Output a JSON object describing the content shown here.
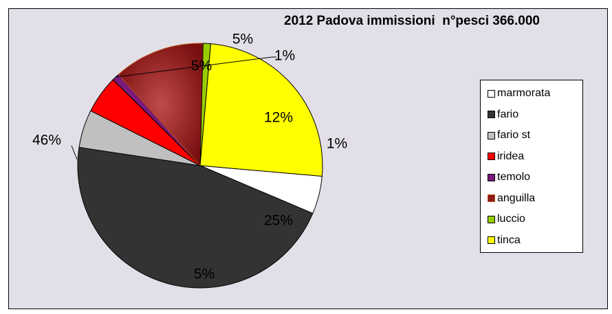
{
  "chart_data": {
    "type": "pie",
    "title": "2012 Padova immissioni  n°pesci 366.000",
    "slices": [
      {
        "name": "marmorata",
        "value": 5,
        "label": "5%",
        "color": "#ffffff"
      },
      {
        "name": "fario",
        "value": 46,
        "label": "46%",
        "color": "#333333"
      },
      {
        "name": "fario st",
        "value": 5,
        "label": "5%",
        "color": "#c0c0c0"
      },
      {
        "name": "iridea",
        "value": 5,
        "label": "5%",
        "color": "#ff0000"
      },
      {
        "name": "temolo",
        "value": 1,
        "label": "1%",
        "color": "#7a1a7a"
      },
      {
        "name": "anguilla",
        "value": 12,
        "label": "12%",
        "color": "#8b1a1a"
      },
      {
        "name": "luccio",
        "value": 1,
        "label": "1%",
        "color": "#99cc00"
      },
      {
        "name": "tinca",
        "value": 25,
        "label": "25%",
        "color": "#ffff00"
      }
    ],
    "legend_position": "right",
    "background": "#e3dfe8"
  }
}
